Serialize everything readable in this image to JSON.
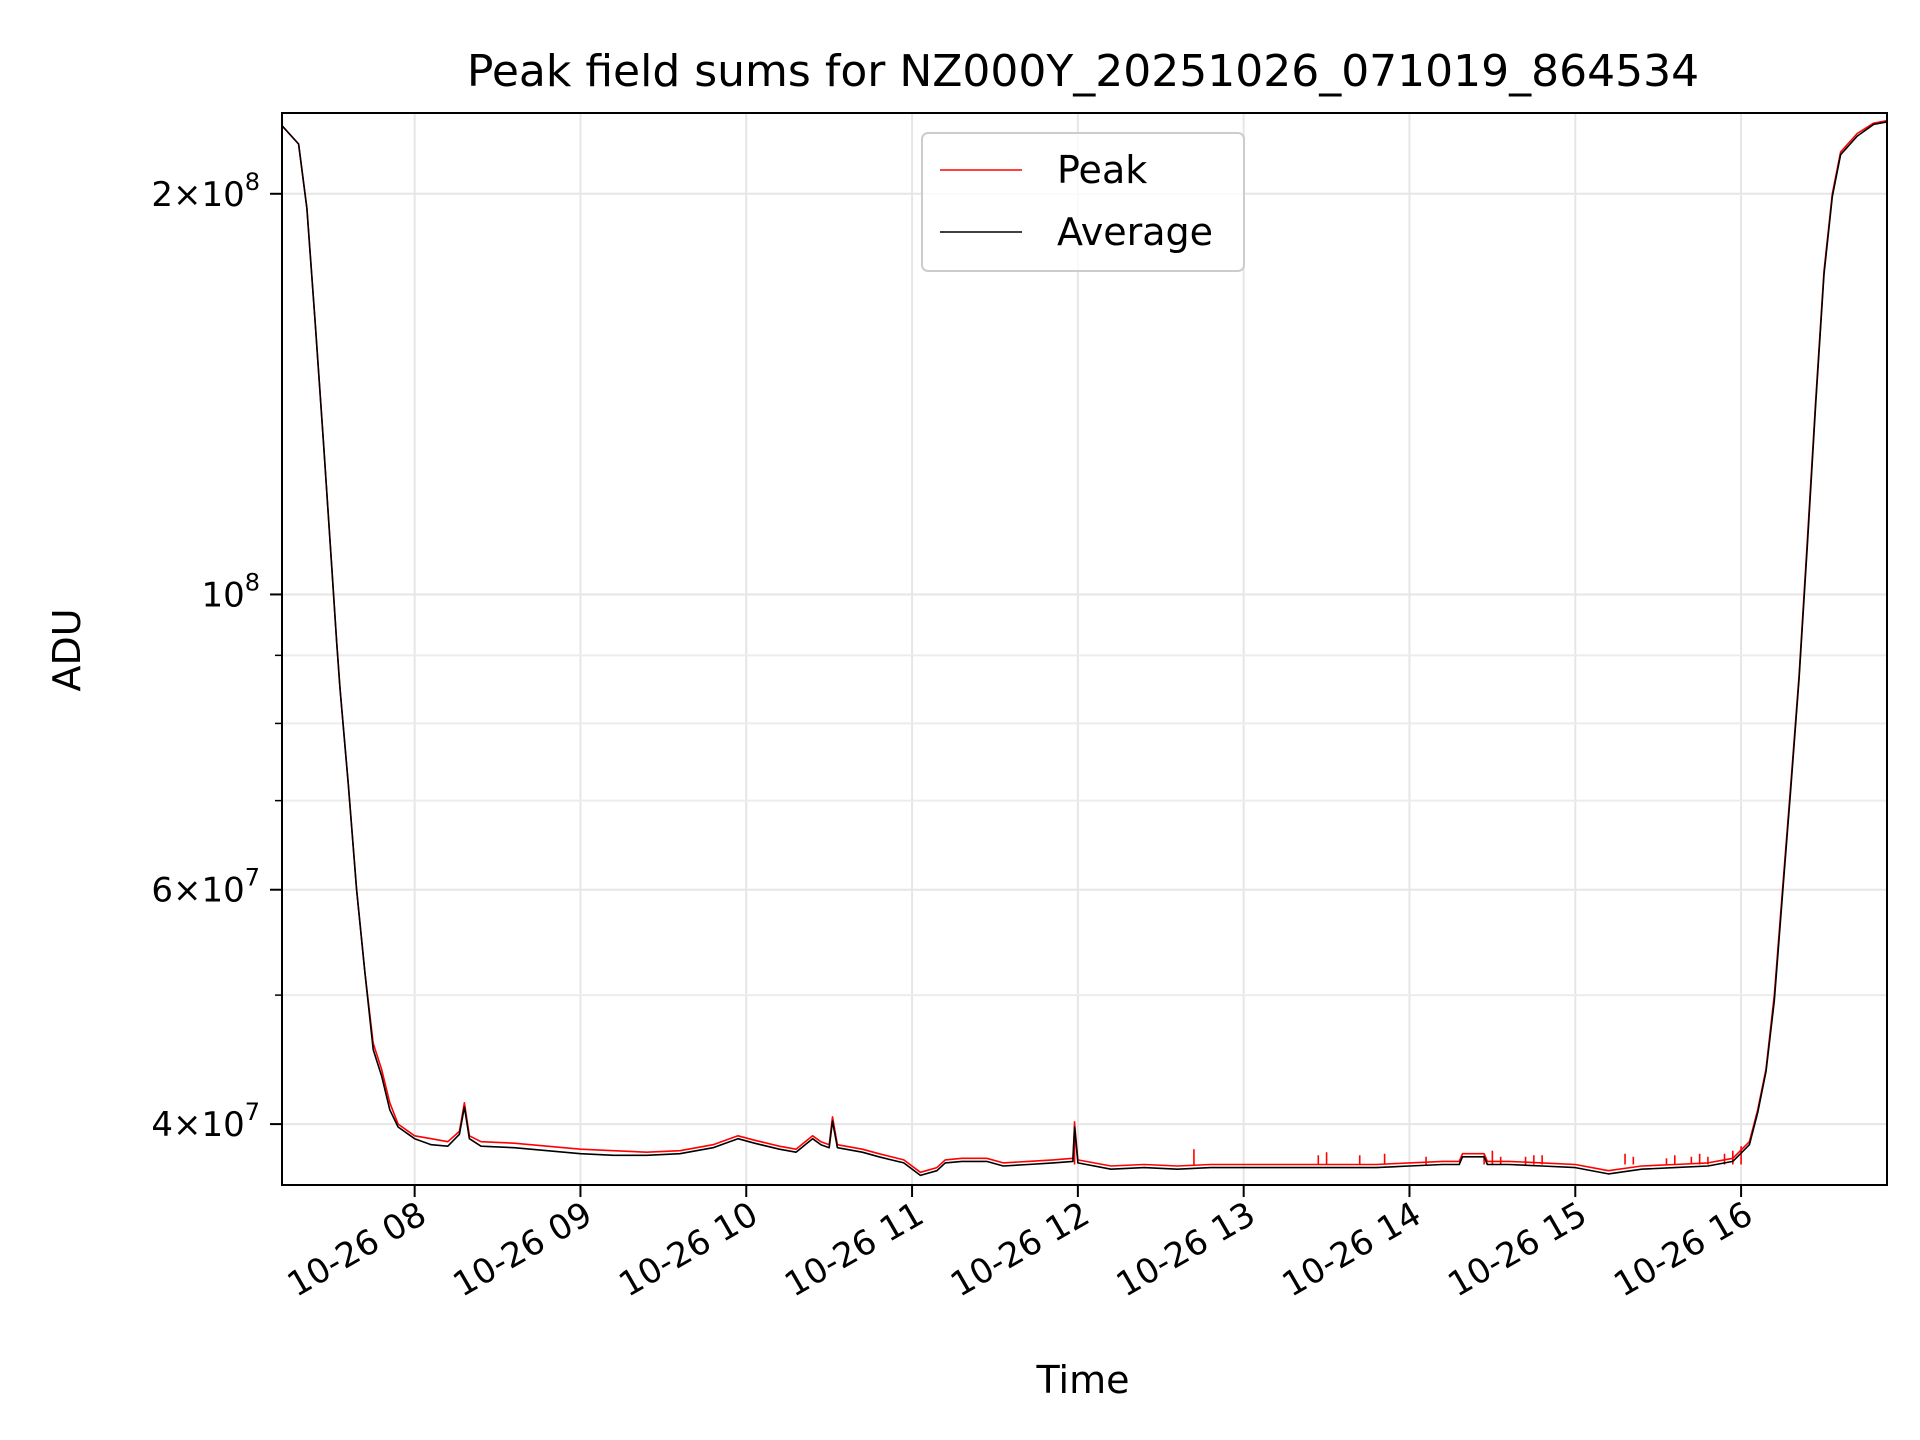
{
  "chart_data": {
    "type": "line",
    "title": "Peak field sums for NZ000Y_20251026_071019_864534",
    "xlabel": "Time",
    "ylabel": "ADU",
    "yscale": "log",
    "ylim": [
      36000000,
      230000000
    ],
    "xlim_hours": [
      7.2,
      16.88
    ],
    "grid": true,
    "legend_position": "upper center",
    "x_ticks": [
      {
        "hour": 8,
        "label": "10-26 08"
      },
      {
        "hour": 9,
        "label": "10-26 09"
      },
      {
        "hour": 10,
        "label": "10-26 10"
      },
      {
        "hour": 11,
        "label": "10-26 11"
      },
      {
        "hour": 12,
        "label": "10-26 12"
      },
      {
        "hour": 13,
        "label": "10-26 13"
      },
      {
        "hour": 14,
        "label": "10-26 14"
      },
      {
        "hour": 15,
        "label": "10-26 15"
      },
      {
        "hour": 16,
        "label": "10-26 16"
      }
    ],
    "y_major_ticks": [
      {
        "value": 40000000,
        "mantissa": "4",
        "exponent": "7"
      },
      {
        "value": 60000000,
        "mantissa": "6",
        "exponent": "7"
      },
      {
        "value": 100000000,
        "mantissa": "",
        "exponent": "8"
      },
      {
        "value": 200000000,
        "mantissa": "2",
        "exponent": "8"
      }
    ],
    "y_minor_ticks": [
      50000000,
      70000000,
      80000000,
      90000000
    ],
    "series": [
      {
        "name": "Peak",
        "color": "#ff0000",
        "points": [
          [
            7.2,
            225000000
          ],
          [
            7.3,
            218000000
          ],
          [
            7.35,
            195000000
          ],
          [
            7.4,
            160000000
          ],
          [
            7.45,
            130000000
          ],
          [
            7.5,
            105000000
          ],
          [
            7.53,
            92000000
          ],
          [
            7.55,
            85000000
          ],
          [
            7.6,
            72000000
          ],
          [
            7.65,
            60000000
          ],
          [
            7.7,
            52000000
          ],
          [
            7.75,
            46000000
          ],
          [
            7.8,
            44000000
          ],
          [
            7.85,
            41500000
          ],
          [
            7.9,
            40000000
          ],
          [
            8.0,
            39200000
          ],
          [
            8.1,
            39000000
          ],
          [
            8.2,
            38800000
          ],
          [
            8.27,
            39500000
          ],
          [
            8.3,
            41500000
          ],
          [
            8.33,
            39200000
          ],
          [
            8.4,
            38800000
          ],
          [
            8.6,
            38700000
          ],
          [
            8.8,
            38500000
          ],
          [
            9.0,
            38300000
          ],
          [
            9.2,
            38200000
          ],
          [
            9.4,
            38100000
          ],
          [
            9.6,
            38200000
          ],
          [
            9.8,
            38600000
          ],
          [
            9.95,
            39200000
          ],
          [
            10.05,
            38900000
          ],
          [
            10.2,
            38500000
          ],
          [
            10.3,
            38300000
          ],
          [
            10.4,
            39200000
          ],
          [
            10.45,
            38800000
          ],
          [
            10.5,
            38600000
          ],
          [
            10.52,
            40500000
          ],
          [
            10.55,
            38600000
          ],
          [
            10.7,
            38300000
          ],
          [
            10.8,
            38000000
          ],
          [
            10.95,
            37600000
          ],
          [
            11.05,
            36800000
          ],
          [
            11.15,
            37100000
          ],
          [
            11.2,
            37600000
          ],
          [
            11.3,
            37700000
          ],
          [
            11.45,
            37700000
          ],
          [
            11.55,
            37400000
          ],
          [
            11.7,
            37500000
          ],
          [
            11.85,
            37600000
          ],
          [
            11.97,
            37700000
          ],
          [
            11.98,
            40000000
          ],
          [
            12.0,
            37600000
          ],
          [
            12.2,
            37200000
          ],
          [
            12.4,
            37300000
          ],
          [
            12.6,
            37200000
          ],
          [
            12.8,
            37300000
          ],
          [
            13.0,
            37300000
          ],
          [
            13.2,
            37300000
          ],
          [
            13.4,
            37300000
          ],
          [
            13.6,
            37300000
          ],
          [
            13.8,
            37300000
          ],
          [
            14.0,
            37400000
          ],
          [
            14.2,
            37500000
          ],
          [
            14.3,
            37500000
          ],
          [
            14.32,
            38000000
          ],
          [
            14.45,
            38000000
          ],
          [
            14.47,
            37500000
          ],
          [
            14.6,
            37500000
          ],
          [
            14.8,
            37400000
          ],
          [
            15.0,
            37300000
          ],
          [
            15.2,
            36900000
          ],
          [
            15.4,
            37200000
          ],
          [
            15.6,
            37300000
          ],
          [
            15.8,
            37400000
          ],
          [
            15.95,
            37700000
          ],
          [
            16.05,
            38800000
          ],
          [
            16.1,
            41000000
          ],
          [
            16.15,
            44000000
          ],
          [
            16.2,
            50000000
          ],
          [
            16.25,
            60000000
          ],
          [
            16.3,
            72000000
          ],
          [
            16.35,
            87000000
          ],
          [
            16.4,
            110000000
          ],
          [
            16.45,
            140000000
          ],
          [
            16.5,
            175000000
          ],
          [
            16.55,
            200000000
          ],
          [
            16.6,
            215000000
          ],
          [
            16.7,
            222000000
          ],
          [
            16.8,
            226000000
          ],
          [
            16.88,
            227000000
          ]
        ],
        "spikes": [
          [
            11.98,
            40200000
          ],
          [
            12.7,
            38300000
          ],
          [
            13.45,
            37900000
          ],
          [
            13.5,
            38100000
          ],
          [
            13.7,
            37900000
          ],
          [
            13.85,
            38000000
          ],
          [
            14.1,
            37800000
          ],
          [
            14.45,
            37900000
          ],
          [
            14.5,
            38200000
          ],
          [
            14.55,
            37800000
          ],
          [
            14.7,
            37800000
          ],
          [
            14.75,
            37900000
          ],
          [
            14.8,
            37900000
          ],
          [
            15.3,
            38000000
          ],
          [
            15.35,
            37800000
          ],
          [
            15.55,
            37700000
          ],
          [
            15.6,
            37900000
          ],
          [
            15.7,
            37800000
          ],
          [
            15.75,
            38000000
          ],
          [
            15.8,
            37800000
          ],
          [
            15.9,
            38000000
          ],
          [
            15.95,
            38200000
          ],
          [
            16.0,
            38500000
          ]
        ]
      },
      {
        "name": "Average",
        "color": "#000000",
        "points": [
          [
            7.2,
            225000000
          ],
          [
            7.3,
            218000000
          ],
          [
            7.35,
            195000000
          ],
          [
            7.4,
            160000000
          ],
          [
            7.45,
            130000000
          ],
          [
            7.5,
            105000000
          ],
          [
            7.53,
            92000000
          ],
          [
            7.55,
            85000000
          ],
          [
            7.6,
            72000000
          ],
          [
            7.65,
            60000000
          ],
          [
            7.7,
            52000000
          ],
          [
            7.75,
            45500000
          ],
          [
            7.8,
            43500000
          ],
          [
            7.85,
            41000000
          ],
          [
            7.9,
            39800000
          ],
          [
            8.0,
            39000000
          ],
          [
            8.1,
            38600000
          ],
          [
            8.2,
            38500000
          ],
          [
            8.27,
            39300000
          ],
          [
            8.3,
            41200000
          ],
          [
            8.33,
            39000000
          ],
          [
            8.4,
            38500000
          ],
          [
            8.6,
            38400000
          ],
          [
            8.8,
            38200000
          ],
          [
            9.0,
            38000000
          ],
          [
            9.2,
            37900000
          ],
          [
            9.4,
            37900000
          ],
          [
            9.6,
            38000000
          ],
          [
            9.8,
            38400000
          ],
          [
            9.95,
            39000000
          ],
          [
            10.05,
            38700000
          ],
          [
            10.2,
            38300000
          ],
          [
            10.3,
            38100000
          ],
          [
            10.4,
            39000000
          ],
          [
            10.45,
            38600000
          ],
          [
            10.5,
            38400000
          ],
          [
            10.52,
            40200000
          ],
          [
            10.55,
            38400000
          ],
          [
            10.7,
            38100000
          ],
          [
            10.8,
            37800000
          ],
          [
            10.95,
            37400000
          ],
          [
            11.05,
            36600000
          ],
          [
            11.15,
            36900000
          ],
          [
            11.2,
            37400000
          ],
          [
            11.3,
            37500000
          ],
          [
            11.45,
            37500000
          ],
          [
            11.55,
            37200000
          ],
          [
            11.7,
            37300000
          ],
          [
            11.85,
            37400000
          ],
          [
            11.97,
            37500000
          ],
          [
            11.98,
            39800000
          ],
          [
            12.0,
            37400000
          ],
          [
            12.2,
            37000000
          ],
          [
            12.4,
            37100000
          ],
          [
            12.6,
            37000000
          ],
          [
            12.8,
            37100000
          ],
          [
            13.0,
            37100000
          ],
          [
            13.2,
            37100000
          ],
          [
            13.4,
            37100000
          ],
          [
            13.6,
            37100000
          ],
          [
            13.8,
            37100000
          ],
          [
            14.0,
            37200000
          ],
          [
            14.2,
            37300000
          ],
          [
            14.3,
            37300000
          ],
          [
            14.32,
            37800000
          ],
          [
            14.45,
            37800000
          ],
          [
            14.47,
            37300000
          ],
          [
            14.6,
            37300000
          ],
          [
            14.8,
            37200000
          ],
          [
            15.0,
            37100000
          ],
          [
            15.2,
            36700000
          ],
          [
            15.4,
            37000000
          ],
          [
            15.6,
            37100000
          ],
          [
            15.8,
            37200000
          ],
          [
            15.95,
            37500000
          ],
          [
            16.05,
            38600000
          ],
          [
            16.1,
            40800000
          ],
          [
            16.15,
            43800000
          ],
          [
            16.2,
            49500000
          ],
          [
            16.25,
            59500000
          ],
          [
            16.3,
            71500000
          ],
          [
            16.35,
            86500000
          ],
          [
            16.4,
            109000000
          ],
          [
            16.45,
            139000000
          ],
          [
            16.5,
            174000000
          ],
          [
            16.55,
            199000000
          ],
          [
            16.6,
            214000000
          ],
          [
            16.7,
            221000000
          ],
          [
            16.8,
            225500000
          ],
          [
            16.88,
            226500000
          ]
        ]
      }
    ]
  }
}
